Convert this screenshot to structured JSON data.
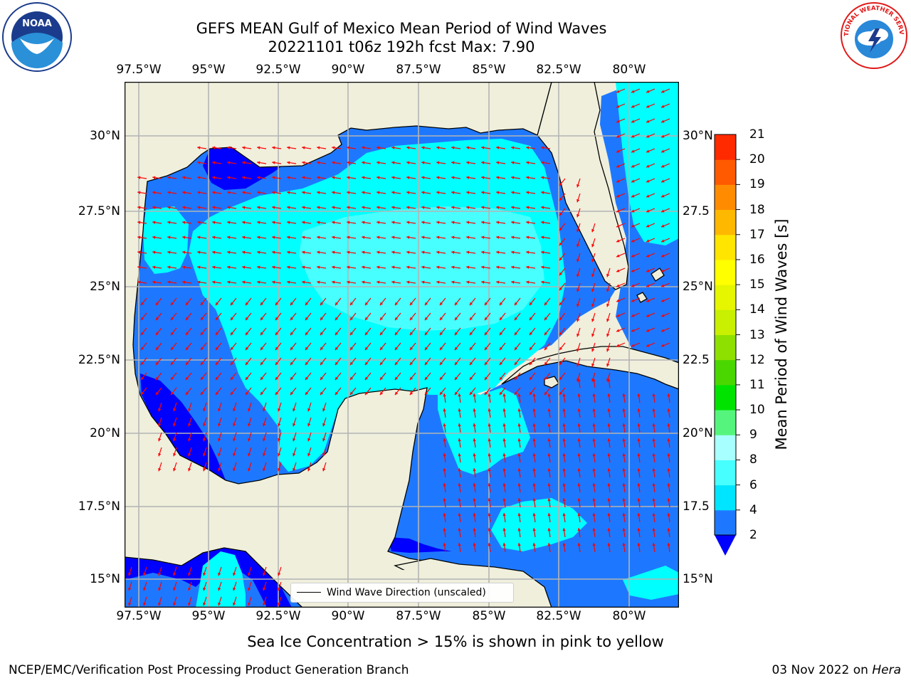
{
  "title_line1": "GEFS MEAN Gulf of Mexico Mean Period of Wind Waves",
  "title_line2": "20221101 t06z 192h fcst   Max: 7.90",
  "lon_labels": [
    "97.5°W",
    "95°W",
    "92.5°W",
    "90°W",
    "87.5°W",
    "85°W",
    "82.5°W",
    "80°W"
  ],
  "lat_labels_left": [
    "30°N",
    "27.5°N",
    "25°N",
    "22.5°N",
    "20°N",
    "17.5°N",
    "15°N"
  ],
  "lat_labels_right": [
    "30°N",
    "27.5",
    "25°N",
    "22.5",
    "20°N",
    "17.5",
    "15°N"
  ],
  "legend_label": "Wind Wave Direction (unscaled)",
  "colorbar": {
    "title": "Mean Period of Wind Waves [s]",
    "ticks": [
      "2",
      "4",
      "6",
      "8",
      "9",
      "10",
      "11",
      "12",
      "13",
      "14",
      "15",
      "16",
      "17",
      "18",
      "19",
      "20",
      "21"
    ],
    "colors": [
      "#1e78ff",
      "#00e5ff",
      "#48ffff",
      "#a8ffff",
      "#55f57d",
      "#00e300",
      "#4ad700",
      "#8ee000",
      "#c8f000",
      "#e6f500",
      "#ffff00",
      "#ffe500",
      "#ffb800",
      "#ff8c00",
      "#ff5a00",
      "#ff2a00",
      "#ff0000"
    ],
    "under_color": "#0000ff"
  },
  "colors": {
    "land": "#efefdc",
    "coast": "#000000",
    "grid": "#b4b4b4",
    "arrow": "#ff0000",
    "deep_blue": "#0000ff",
    "mid_blue": "#1e78ff",
    "cyan": "#00ffff",
    "pale_cyan": "#48ffff"
  },
  "footer_note": "Sea Ice Concentration > 15% is shown in pink to yellow",
  "credit": "NCEP/EMC/Verification Post Processing Product Generation Branch",
  "date": "03 Nov 2022 on",
  "host": "Hera",
  "logos": {
    "left": "NOAA",
    "right": "NATIONAL WEATHER SERVICE"
  }
}
